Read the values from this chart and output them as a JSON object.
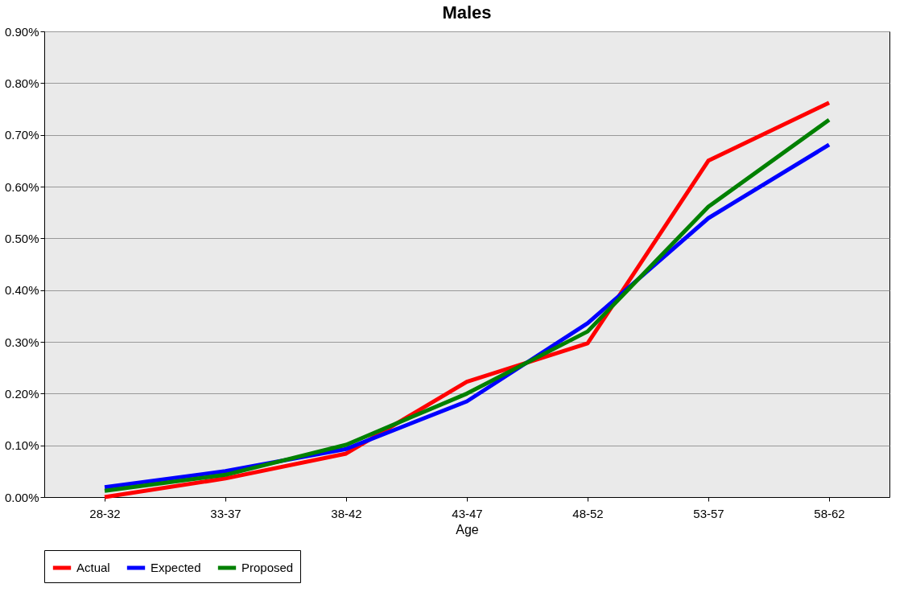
{
  "chart_data": {
    "type": "line",
    "title": "Males",
    "xlabel": "Age",
    "categories": [
      "28-32",
      "33-37",
      "38-42",
      "43-47",
      "48-52",
      "53-57",
      "58-62"
    ],
    "series": [
      {
        "name": "Actual",
        "color": "#ff0000",
        "values": [
          0.0,
          0.036,
          0.084,
          0.223,
          0.297,
          0.65,
          0.762
        ]
      },
      {
        "name": "Expected",
        "color": "#0000ff",
        "values": [
          0.019,
          0.05,
          0.093,
          0.185,
          0.336,
          0.539,
          0.681
        ]
      },
      {
        "name": "Proposed",
        "color": "#008000",
        "values": [
          0.012,
          0.043,
          0.101,
          0.2,
          0.32,
          0.561,
          0.729
        ]
      }
    ],
    "ylim": [
      0,
      0.9
    ],
    "yticks": [
      {
        "value": 0,
        "label": "0.00%"
      },
      {
        "value": 0.1,
        "label": "0.10%"
      },
      {
        "value": 0.2,
        "label": "0.20%"
      },
      {
        "value": 0.3,
        "label": "0.30%"
      },
      {
        "value": 0.4,
        "label": "0.40%"
      },
      {
        "value": 0.5,
        "label": "0.50%"
      },
      {
        "value": 0.6,
        "label": "0.60%"
      },
      {
        "value": 0.7,
        "label": "0.70%"
      },
      {
        "value": 0.8,
        "label": "0.80%"
      },
      {
        "value": 0.9,
        "label": "0.90%"
      }
    ],
    "grid": "y",
    "legend": "bottom",
    "marker": "none",
    "line_style": "solid"
  }
}
